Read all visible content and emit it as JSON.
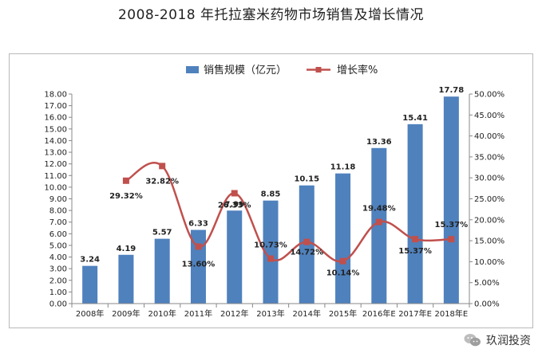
{
  "title": "2008-2018 年托拉塞米药物市场销售及增长情况",
  "watermark": {
    "text": "玖润投资",
    "icon": "wechat-icon"
  },
  "colors": {
    "bar": "#4f81bd",
    "line": "#c0504d"
  },
  "chart_data": {
    "type": "bar+line",
    "categories": [
      "2008年",
      "2009年",
      "2010年",
      "2011年",
      "2012年",
      "2013年",
      "2014年",
      "2015年",
      "2016年E",
      "2017年E",
      "2018年E"
    ],
    "series": [
      {
        "name": "销售规模（亿元）",
        "type": "bar",
        "axis": "left",
        "values": [
          3.24,
          4.19,
          5.57,
          6.33,
          7.99,
          8.85,
          10.15,
          11.18,
          13.36,
          15.41,
          17.78
        ],
        "labels": [
          "3.24",
          "4.19",
          "5.57",
          "6.33",
          "7.99",
          "8.85",
          "10.15",
          "11.18",
          "13.36",
          "15.41",
          "17.78"
        ]
      },
      {
        "name": "增长率%",
        "type": "line",
        "axis": "right",
        "values": [
          null,
          29.32,
          32.82,
          13.6,
          26.33,
          10.73,
          14.72,
          10.14,
          19.48,
          15.37,
          15.37
        ],
        "labels": [
          "",
          "29.32%",
          "32.82%",
          "13.60%",
          "26.33%",
          "10.73%",
          "14.72%",
          "10.14%",
          "19.48%",
          "15.37%",
          "15.37%"
        ]
      }
    ],
    "left_axis": {
      "ylim": [
        0,
        18
      ],
      "ticks": [
        "0.00",
        "1.00",
        "2.00",
        "3.00",
        "4.00",
        "5.00",
        "6.00",
        "7.00",
        "8.00",
        "9.00",
        "10.00",
        "11.00",
        "12.00",
        "13.00",
        "14.00",
        "15.00",
        "16.00",
        "17.00",
        "18.00"
      ]
    },
    "right_axis": {
      "ylim": [
        0,
        50
      ],
      "ticks": [
        "0.00%",
        "5.00%",
        "10.00%",
        "15.00%",
        "20.00%",
        "25.00%",
        "30.00%",
        "35.00%",
        "40.00%",
        "45.00%",
        "50.00%"
      ]
    },
    "legend_position": "top"
  }
}
